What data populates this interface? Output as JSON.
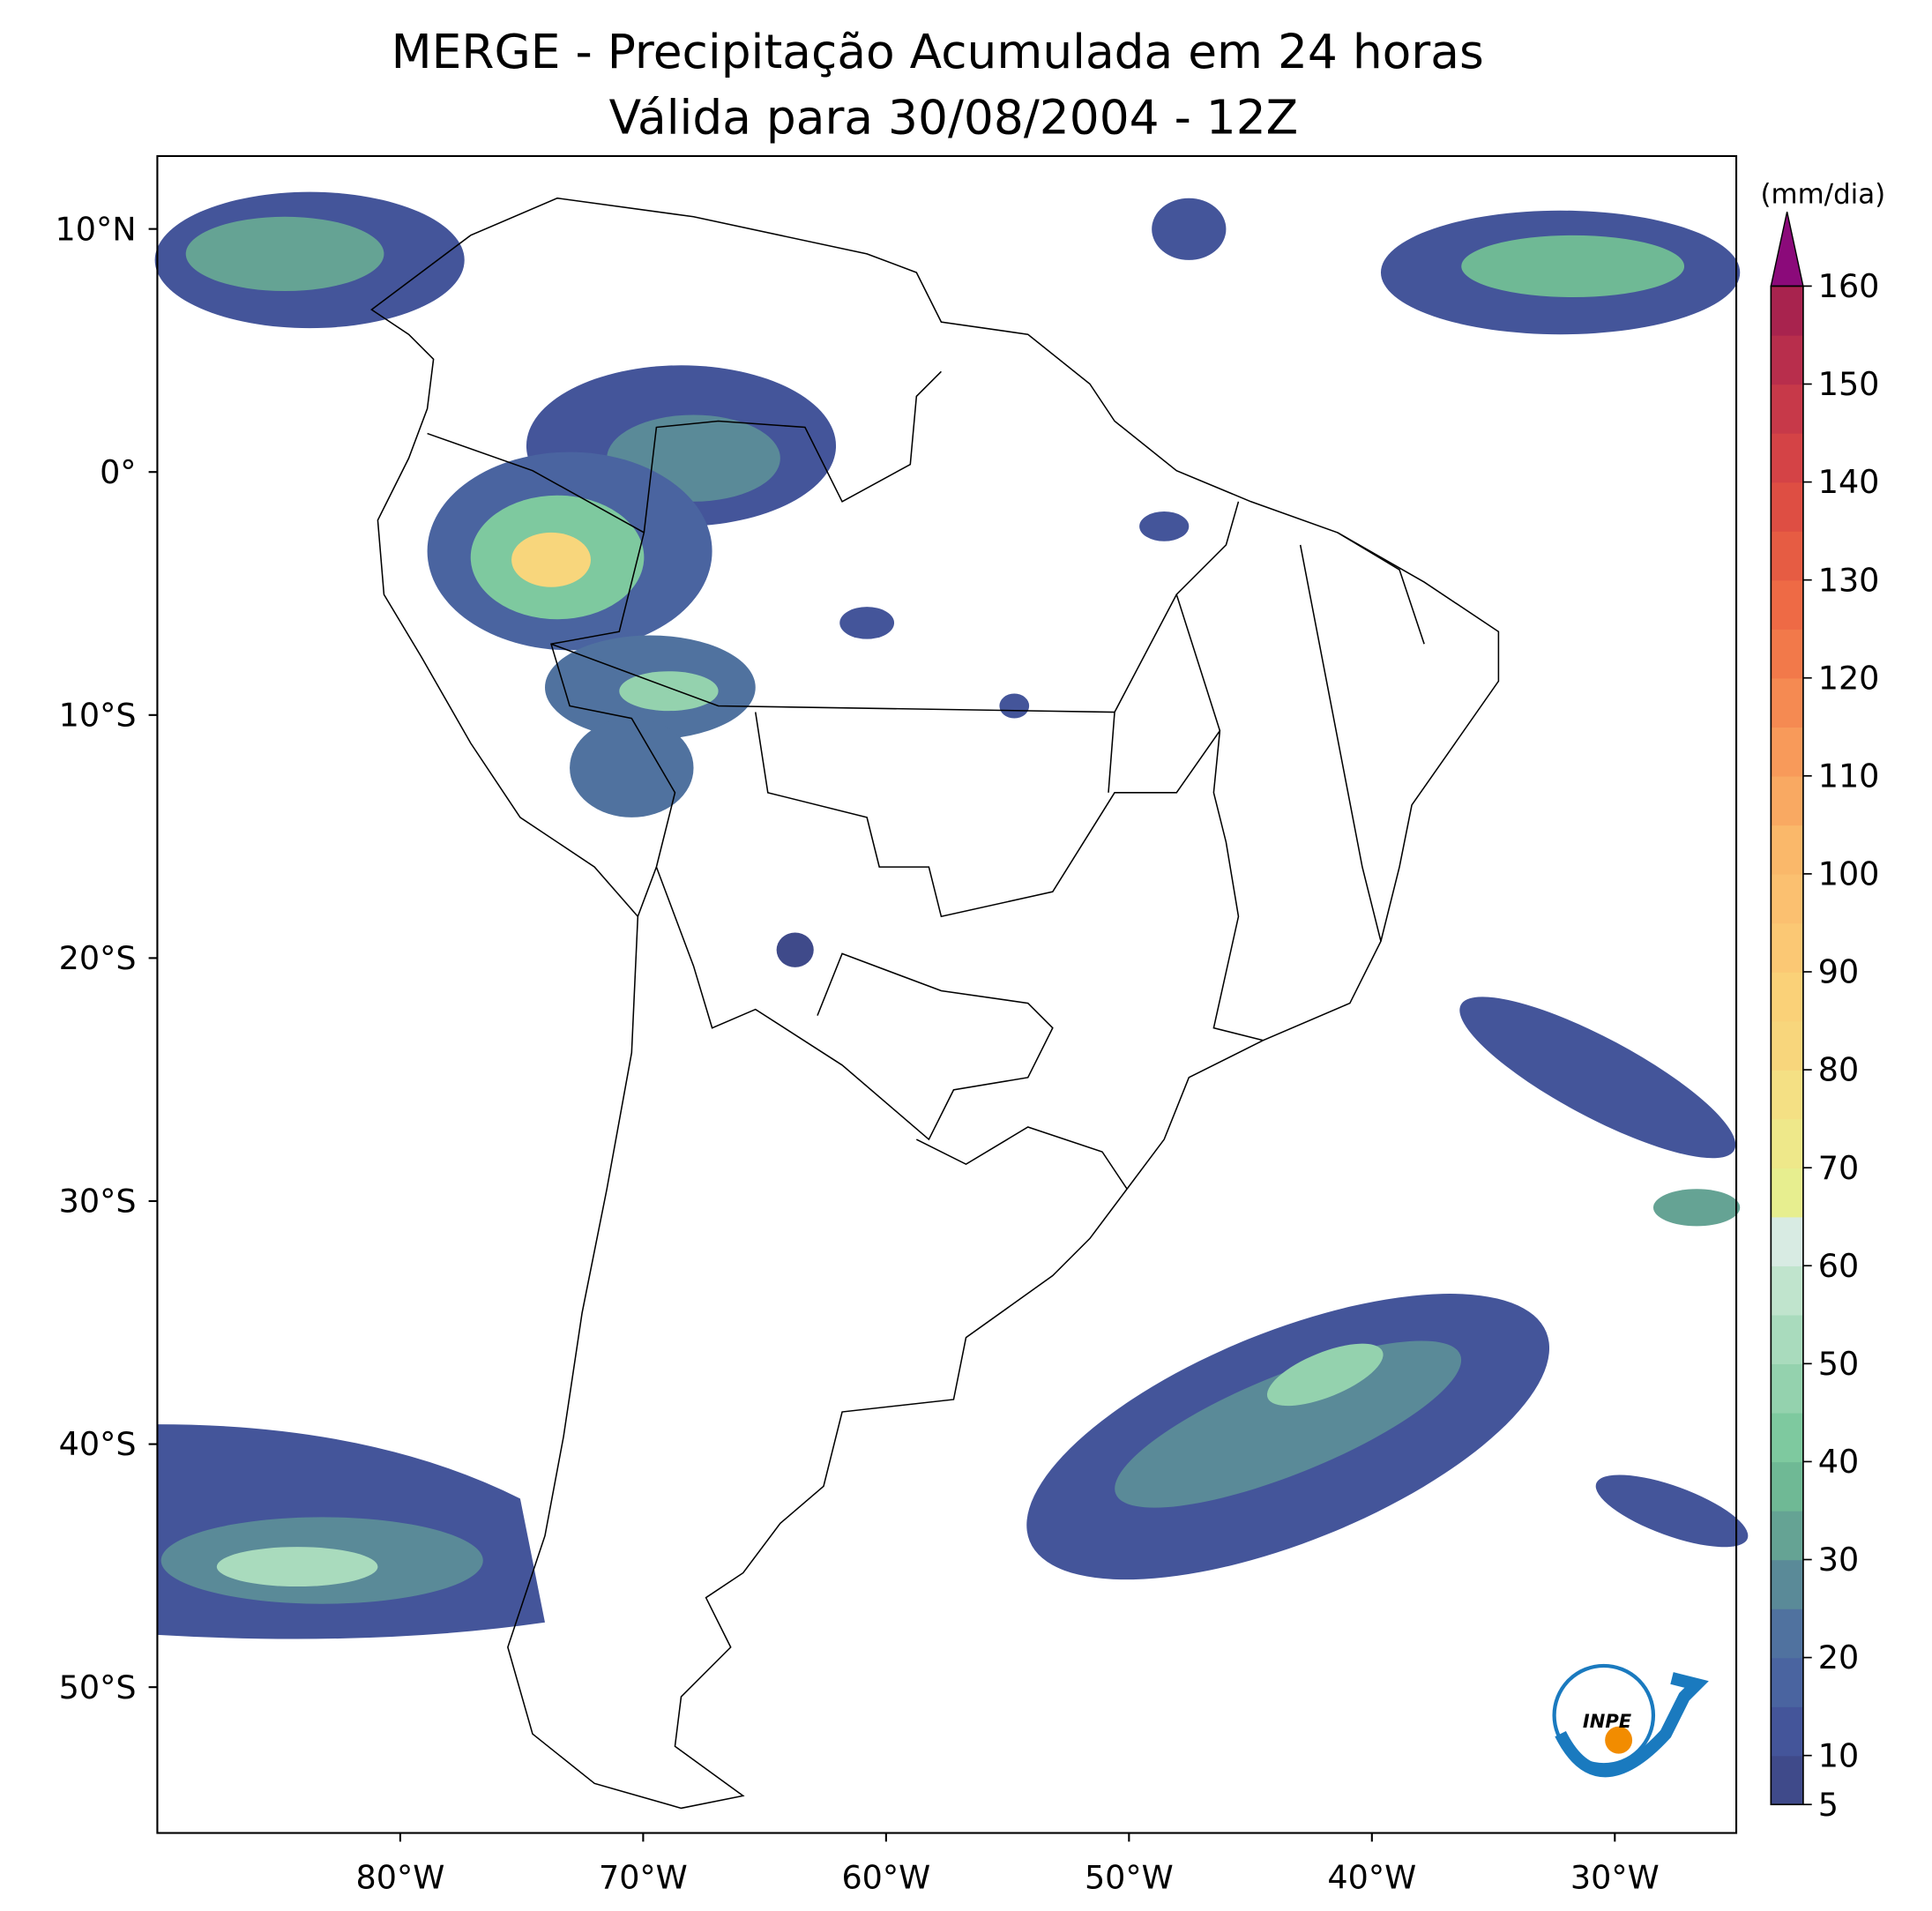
{
  "map": {
    "title": [
      "MERGE - Precipitação Acumulada em 24 horas",
      "Válida para 30/08/2004 - 12Z"
    ],
    "xlim": [
      -90,
      -25
    ],
    "ylim": [
      -56,
      13
    ],
    "xticks": [
      {
        "value": -80,
        "label": "80°W"
      },
      {
        "value": -70,
        "label": "70°W"
      },
      {
        "value": -60,
        "label": "60°W"
      },
      {
        "value": -50,
        "label": "50°W"
      },
      {
        "value": -40,
        "label": "40°W"
      },
      {
        "value": -30,
        "label": "30°W"
      }
    ],
    "yticks": [
      {
        "value": 10,
        "label": "10°N"
      },
      {
        "value": 0,
        "label": "0°"
      },
      {
        "value": -10,
        "label": "10°S"
      },
      {
        "value": -20,
        "label": "20°S"
      },
      {
        "value": -30,
        "label": "30°S"
      },
      {
        "value": -40,
        "label": "40°S"
      },
      {
        "value": -50,
        "label": "50°S"
      }
    ],
    "colorbar": {
      "label": "(mm/dia)",
      "lim": [
        5,
        160
      ],
      "ticks": [
        5,
        10,
        20,
        30,
        40,
        50,
        60,
        70,
        80,
        90,
        100,
        110,
        120,
        130,
        140,
        150,
        160
      ],
      "levels": [
        5,
        10,
        15,
        20,
        25,
        30,
        35,
        40,
        45,
        50,
        55,
        60,
        65,
        70,
        75,
        80,
        85,
        90,
        95,
        100,
        105,
        110,
        115,
        120,
        125,
        130,
        135,
        140,
        145,
        150,
        155,
        160
      ],
      "colors": [
        "#3f4a8a",
        "#44559a",
        "#4a64a0",
        "#50729f",
        "#5a8a98",
        "#65a394",
        "#6fb995",
        "#7ec99f",
        "#94d2ae",
        "#a9dbbd",
        "#c0e4cd",
        "#d8ebe3",
        "#e7ee8f",
        "#eee88a",
        "#f4e084",
        "#f8d67c",
        "#fad178",
        "#fbc874",
        "#fbc070",
        "#fab86a",
        "#f9a962",
        "#f89a5a",
        "#f58a52",
        "#f2794a",
        "#ee6a45",
        "#e65c43",
        "#de4e43",
        "#d44346",
        "#c73949",
        "#b82e4c",
        "#a8234e"
      ],
      "extend_color": "#8b0a7a"
    },
    "logo": "INPE"
  }
}
